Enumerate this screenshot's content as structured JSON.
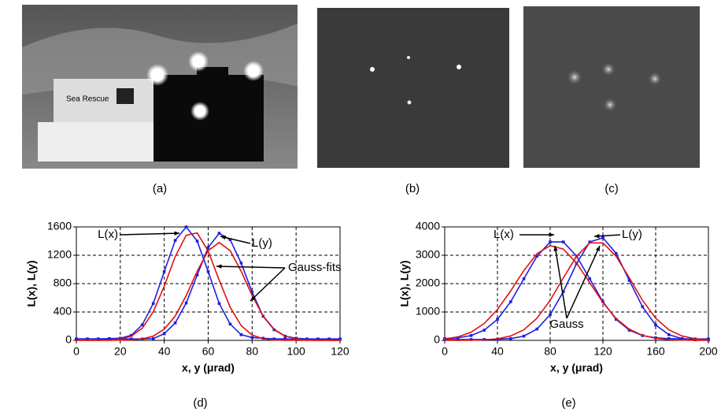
{
  "images": [
    {
      "caption": "(a)",
      "text": "Sea Rescue"
    },
    {
      "caption": "(b)"
    },
    {
      "caption": "(c)"
    }
  ],
  "chart_data": [
    {
      "type": "line",
      "caption": "(d)",
      "ylabel": "L(x), L(y)",
      "xlabel": "x, y (μrad)",
      "annotation": "Gauss-fits",
      "xlim": [
        0,
        120
      ],
      "xticks": [
        0,
        20,
        40,
        60,
        80,
        100,
        120
      ],
      "ylim": [
        0,
        1600
      ],
      "yticks": [
        0,
        400,
        800,
        1200,
        1600
      ],
      "grid": true,
      "x": [
        0,
        5,
        10,
        15,
        20,
        25,
        30,
        35,
        40,
        45,
        50,
        55,
        60,
        65,
        70,
        75,
        80,
        85,
        90,
        95,
        100,
        105,
        110,
        115,
        120
      ],
      "series": [
        {
          "name": "L(x)",
          "color": "#1f1fe0",
          "values": [
            20,
            20,
            20,
            25,
            30,
            70,
            220,
            520,
            970,
            1410,
            1600,
            1400,
            970,
            520,
            230,
            80,
            40,
            30,
            20,
            20,
            15,
            15,
            15,
            15,
            15
          ]
        },
        {
          "name": "L(y)",
          "color": "#1f1fe0",
          "values": [
            20,
            20,
            20,
            20,
            20,
            20,
            20,
            25,
            93,
            246,
            527,
            922,
            1310,
            1510,
            1420,
            1090,
            680,
            340,
            150,
            60,
            30,
            20,
            20,
            20,
            20
          ]
        },
        {
          "color": "#e01010",
          "values": [
            0,
            0,
            1,
            4,
            17,
            60,
            172,
            403,
            765,
            1183,
            1483,
            1515,
            1258,
            849,
            467,
            208,
            75,
            22,
            5,
            1,
            0,
            0,
            0,
            0,
            0
          ]
        },
        {
          "color": "#e01010",
          "values": [
            0,
            0,
            0,
            1,
            3,
            7,
            20,
            60,
            157,
            344,
            632,
            975,
            1265,
            1380,
            1265,
            975,
            632,
            344,
            157,
            60,
            20,
            5,
            1,
            0,
            0
          ]
        }
      ]
    },
    {
      "type": "line",
      "caption": "(e)",
      "ylabel": "L(x), L(y)",
      "xlabel": "x, y (μrad)",
      "annotation": "Gauss",
      "xlim": [
        0,
        200
      ],
      "xticks": [
        0,
        40,
        80,
        120,
        160,
        200
      ],
      "ylim": [
        0,
        4000
      ],
      "yticks": [
        0,
        1000,
        2000,
        3000,
        4000
      ],
      "grid": true,
      "x": [
        0,
        10,
        20,
        30,
        40,
        50,
        60,
        70,
        80,
        90,
        100,
        110,
        120,
        130,
        140,
        150,
        160,
        170,
        180,
        190,
        200
      ],
      "series": [
        {
          "name": "L(x)",
          "color": "#1f1fe0",
          "values": [
            60,
            90,
            170,
            360,
            740,
            1360,
            2170,
            2970,
            3470,
            3470,
            2970,
            2170,
            1360,
            740,
            360,
            170,
            90,
            60,
            50,
            50,
            50
          ]
        },
        {
          "name": "L(y)",
          "color": "#1f1fe0",
          "values": [
            30,
            30,
            30,
            30,
            40,
            60,
            150,
            400,
            910,
            1719,
            2708,
            3468,
            3617,
            3066,
            2113,
            1186,
            540,
            200,
            60,
            20,
            10
          ]
        },
        {
          "color": "#e01010",
          "values": [
            46,
            123,
            288,
            597,
            1088,
            1743,
            2460,
            3056,
            3341,
            3216,
            2724,
            2032,
            1334,
            770,
            392,
            176,
            69,
            24,
            7,
            2,
            0
          ]
        },
        {
          "color": "#e01010",
          "values": [
            0,
            1,
            4,
            17,
            55,
            154,
            373,
            782,
            1414,
            2204,
            2964,
            3436,
            3436,
            2964,
            2204,
            1414,
            782,
            373,
            154,
            55,
            17
          ]
        }
      ]
    }
  ]
}
